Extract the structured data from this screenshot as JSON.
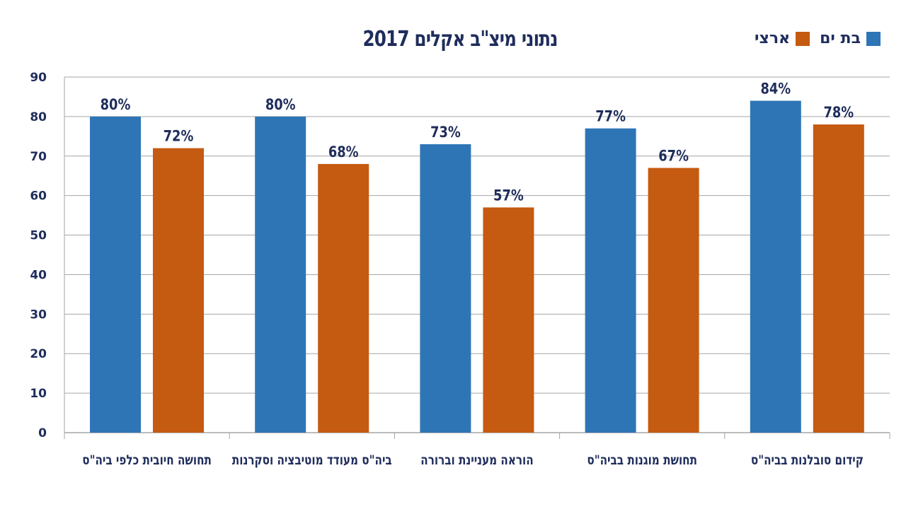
{
  "chart_data": {
    "type": "bar",
    "title": "נתוני מיצ\"ב אקלים 2017",
    "categories": [
      "תחושה חיובית כלפי ביה\"ס",
      "ביה\"ס מעודד מוטיבציה וסקרנות",
      "הוראה מעניינת וברורה",
      "תחושת מוגנות בביה\"ס",
      "קידום סובלנות בביה\"ס"
    ],
    "series": [
      {
        "name": "בת ים",
        "values": [
          80,
          80,
          73,
          77,
          84
        ],
        "labels": [
          "80%",
          "80%",
          "73%",
          "77%",
          "84%"
        ],
        "color": "#2e75b6"
      },
      {
        "name": "ארצי",
        "values": [
          72,
          68,
          57,
          67,
          78
        ],
        "labels": [
          "72%",
          "68%",
          "57%",
          "67%",
          "78%"
        ],
        "color": "#c55a11"
      }
    ],
    "ylim": [
      0,
      90
    ],
    "yticks": [
      "0",
      "10",
      "20",
      "30",
      "40",
      "50",
      "60",
      "70",
      "80",
      "90"
    ],
    "grid": true,
    "legend_position": "top-right"
  }
}
